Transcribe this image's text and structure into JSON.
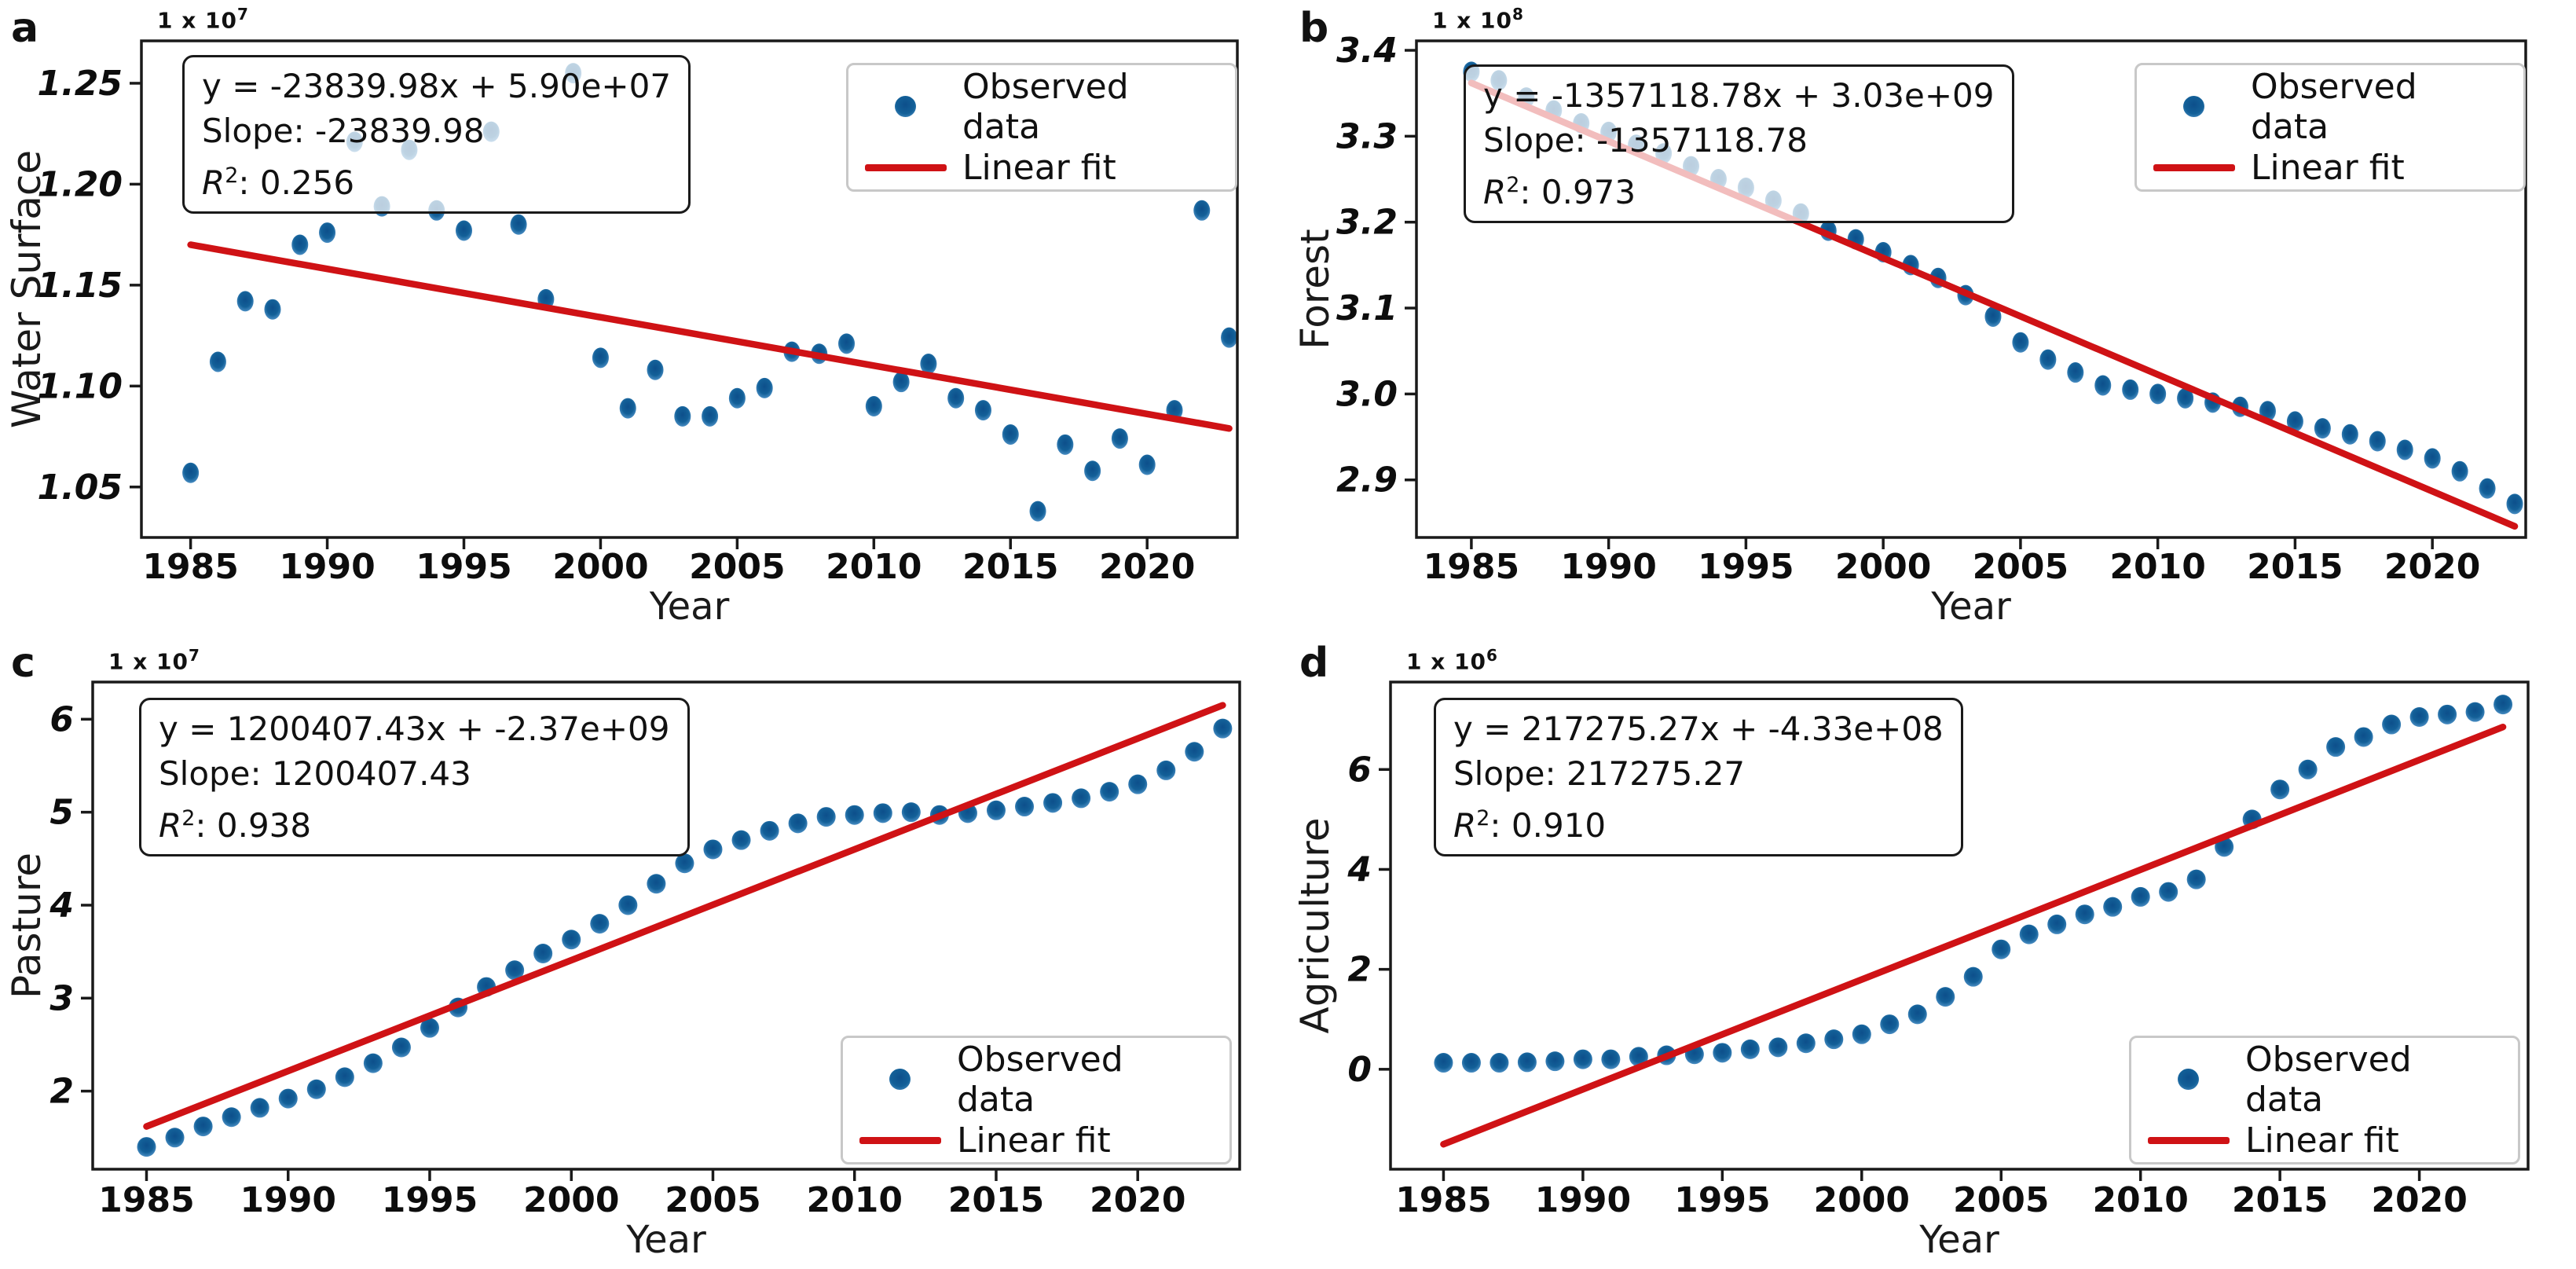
{
  "figure": {
    "background": "#ffffff"
  },
  "chart_data": [
    {
      "type": "scatter",
      "panel_label": "a",
      "ylabel": "Water Surface",
      "xlabel": "Year",
      "scale_base": "1 x 10",
      "scale_exponent": "7",
      "legend": {
        "observed": "Observed data",
        "fit": "Linear fit",
        "position": "top-right"
      },
      "annotation": {
        "equation": "y = -23839.98x + 5.90e+07",
        "slope": "Slope: -23839.98",
        "r2_symbol": "R",
        "r2_exponent": "2",
        "r2_separator": ": ",
        "r2_value": "0.256"
      },
      "x": [
        1985,
        1986,
        1987,
        1988,
        1989,
        1990,
        1991,
        1992,
        1993,
        1994,
        1995,
        1996,
        1997,
        1998,
        1999,
        2000,
        2001,
        2002,
        2003,
        2004,
        2005,
        2006,
        2007,
        2008,
        2009,
        2010,
        2011,
        2012,
        2013,
        2014,
        2015,
        2016,
        2017,
        2018,
        2019,
        2020,
        2021,
        2022,
        2023
      ],
      "values": [
        1.057,
        1.112,
        1.142,
        1.138,
        1.17,
        1.176,
        1.221,
        1.189,
        1.217,
        1.187,
        1.177,
        1.226,
        1.18,
        1.143,
        1.255,
        1.114,
        1.089,
        1.108,
        1.085,
        1.085,
        1.094,
        1.099,
        1.117,
        1.116,
        1.121,
        1.09,
        1.102,
        1.111,
        1.094,
        1.088,
        1.076,
        1.038,
        1.071,
        1.058,
        1.074,
        1.061,
        1.088,
        1.187,
        1.124
      ],
      "fit_line": {
        "x": [
          1985,
          2023
        ],
        "y": [
          1.17,
          1.079
        ]
      },
      "xlim": [
        1983.2,
        2023.3
      ],
      "ylim": [
        1.025,
        1.271
      ],
      "xticks": [
        1985,
        1990,
        1995,
        2000,
        2005,
        2010,
        2015,
        2020
      ],
      "xtick_labels": [
        "1985",
        "1990",
        "1995",
        "2000",
        "2005",
        "2010",
        "2015",
        "2020"
      ],
      "ytick_values": [
        1.05,
        1.1,
        1.15,
        1.2,
        1.25
      ],
      "ytick_labels": [
        "1.05",
        "1.10",
        "1.15",
        "1.20",
        "1.25"
      ],
      "colors": {
        "dot": "#136098",
        "dot_edge": "#5a9bd0",
        "fit_line": "#cf1215",
        "axis": "#1a1a1a"
      }
    },
    {
      "type": "scatter",
      "panel_label": "b",
      "ylabel": "Forest",
      "xlabel": "Year",
      "scale_base": "1 x 10",
      "scale_exponent": "8",
      "legend": {
        "observed": "Observed data",
        "fit": "Linear fit",
        "position": "top-right"
      },
      "annotation": {
        "equation": "y = -1357118.78x + 3.03e+09",
        "slope": "Slope: -1357118.78",
        "r2_symbol": "R",
        "r2_exponent": "2",
        "r2_separator": ": ",
        "r2_value": "0.973"
      },
      "x": [
        1985,
        1986,
        1987,
        1988,
        1989,
        1990,
        1991,
        1992,
        1993,
        1994,
        1995,
        1996,
        1997,
        1998,
        1999,
        2000,
        2001,
        2002,
        2003,
        2004,
        2005,
        2006,
        2007,
        2008,
        2009,
        2010,
        2011,
        2012,
        2013,
        2014,
        2015,
        2016,
        2017,
        2018,
        2019,
        2020,
        2021,
        2022,
        2023
      ],
      "values": [
        3.375,
        3.365,
        3.345,
        3.33,
        3.315,
        3.305,
        3.29,
        3.28,
        3.265,
        3.25,
        3.24,
        3.225,
        3.21,
        3.19,
        3.18,
        3.165,
        3.15,
        3.135,
        3.115,
        3.09,
        3.06,
        3.04,
        3.025,
        3.01,
        3.005,
        3.0,
        2.995,
        2.99,
        2.985,
        2.98,
        2.968,
        2.96,
        2.953,
        2.945,
        2.935,
        2.925,
        2.91,
        2.89,
        2.872
      ],
      "fit_line": {
        "x": [
          1985,
          2023
        ],
        "y": [
          3.362,
          2.846
        ]
      },
      "xlim": [
        1983.0,
        2023.4
      ],
      "ylim": [
        2.833,
        3.411
      ],
      "xticks": [
        1985,
        1990,
        1995,
        2000,
        2005,
        2010,
        2015,
        2020
      ],
      "xtick_labels": [
        "1985",
        "1990",
        "1995",
        "2000",
        "2005",
        "2010",
        "2015",
        "2020"
      ],
      "ytick_values": [
        2.9,
        3.0,
        3.1,
        3.2,
        3.3,
        3.4
      ],
      "ytick_labels": [
        "2.9",
        "3.0",
        "3.1",
        "3.2",
        "3.3",
        "3.4"
      ],
      "colors": {
        "dot": "#136098",
        "dot_edge": "#5a9bd0",
        "fit_line": "#cf1215",
        "axis": "#1a1a1a"
      }
    },
    {
      "type": "scatter",
      "panel_label": "c",
      "ylabel": "Pasture",
      "xlabel": "Year",
      "scale_base": "1 x 10",
      "scale_exponent": "7",
      "legend": {
        "observed": "Observed data",
        "fit": "Linear fit",
        "position": "bottom-right"
      },
      "annotation": {
        "equation": "y = 1200407.43x + -2.37e+09",
        "slope": "Slope: 1200407.43",
        "r2_symbol": "R",
        "r2_exponent": "2",
        "r2_separator": ": ",
        "r2_value": "0.938"
      },
      "x": [
        1985,
        1986,
        1987,
        1988,
        1989,
        1990,
        1991,
        1992,
        1993,
        1994,
        1995,
        1996,
        1997,
        1998,
        1999,
        2000,
        2001,
        2002,
        2003,
        2004,
        2005,
        2006,
        2007,
        2008,
        2009,
        2010,
        2011,
        2012,
        2013,
        2014,
        2015,
        2016,
        2017,
        2018,
        2019,
        2020,
        2021,
        2022,
        2023
      ],
      "values": [
        1.4,
        1.5,
        1.62,
        1.72,
        1.82,
        1.92,
        2.02,
        2.15,
        2.3,
        2.47,
        2.68,
        2.9,
        3.12,
        3.3,
        3.48,
        3.63,
        3.8,
        4.0,
        4.23,
        4.45,
        4.6,
        4.7,
        4.8,
        4.88,
        4.95,
        4.97,
        4.99,
        5.0,
        4.97,
        4.99,
        5.02,
        5.06,
        5.1,
        5.15,
        5.22,
        5.3,
        5.45,
        5.65,
        5.9
      ],
      "fit_line": {
        "x": [
          1985,
          2023
        ],
        "y": [
          1.62,
          6.15
        ]
      },
      "xlim": [
        1983.1,
        2023.6
      ],
      "ylim": [
        1.16,
        6.4
      ],
      "xticks": [
        1985,
        1990,
        1995,
        2000,
        2005,
        2010,
        2015,
        2020
      ],
      "xtick_labels": [
        "1985",
        "1990",
        "1995",
        "2000",
        "2005",
        "2010",
        "2015",
        "2020"
      ],
      "ytick_values": [
        2,
        3,
        4,
        5,
        6
      ],
      "ytick_labels": [
        "2",
        "3",
        "4",
        "5",
        "6"
      ],
      "colors": {
        "dot": "#136098",
        "dot_edge": "#5a9bd0",
        "fit_line": "#cf1215",
        "axis": "#1a1a1a"
      }
    },
    {
      "type": "scatter",
      "panel_label": "d",
      "ylabel": "Agriculture",
      "xlabel": "Year",
      "scale_base": "1 x 10",
      "scale_exponent": "6",
      "legend": {
        "observed": "Observed data",
        "fit": "Linear fit",
        "position": "bottom-right"
      },
      "annotation": {
        "equation": "y = 217275.27x + -4.33e+08",
        "slope": "Slope: 217275.27",
        "r2_symbol": "R",
        "r2_exponent": "2",
        "r2_separator": ": ",
        "r2_value": "0.910"
      },
      "x": [
        1985,
        1986,
        1987,
        1988,
        1989,
        1990,
        1991,
        1992,
        1993,
        1994,
        1995,
        1996,
        1997,
        1998,
        1999,
        2000,
        2001,
        2002,
        2003,
        2004,
        2005,
        2006,
        2007,
        2008,
        2009,
        2010,
        2011,
        2012,
        2013,
        2014,
        2015,
        2016,
        2017,
        2018,
        2019,
        2020,
        2021,
        2022,
        2023
      ],
      "values": [
        0.13,
        0.13,
        0.13,
        0.14,
        0.16,
        0.2,
        0.2,
        0.25,
        0.28,
        0.3,
        0.33,
        0.4,
        0.44,
        0.52,
        0.6,
        0.7,
        0.9,
        1.1,
        1.45,
        1.85,
        2.4,
        2.7,
        2.9,
        3.1,
        3.25,
        3.45,
        3.55,
        3.8,
        4.45,
        5.0,
        5.6,
        6.0,
        6.45,
        6.65,
        6.9,
        7.05,
        7.1,
        7.15,
        7.3
      ],
      "fit_line": {
        "x": [
          1985,
          2023
        ],
        "y": [
          -1.5,
          6.85
        ]
      },
      "xlim": [
        1983.1,
        2023.9
      ],
      "ylim": [
        -2.0,
        7.75
      ],
      "xticks": [
        1985,
        1990,
        1995,
        2000,
        2005,
        2010,
        2015,
        2020
      ],
      "xtick_labels": [
        "1985",
        "1990",
        "1995",
        "2000",
        "2005",
        "2010",
        "2015",
        "2020"
      ],
      "ytick_values": [
        0,
        2,
        4,
        6
      ],
      "ytick_labels": [
        "0",
        "2",
        "4",
        "6"
      ],
      "colors": {
        "dot": "#136098",
        "dot_edge": "#5a9bd0",
        "fit_line": "#cf1215",
        "axis": "#1a1a1a"
      }
    }
  ]
}
